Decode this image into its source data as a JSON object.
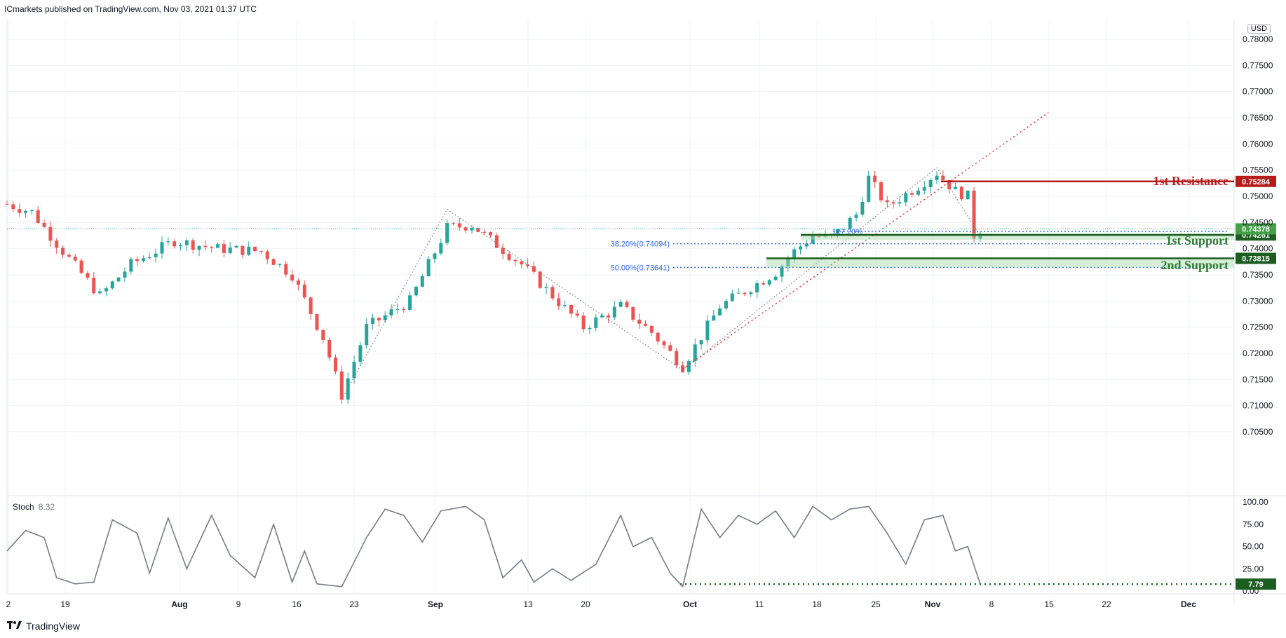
{
  "header": {
    "attribution": "ICmarkets published on TradingView.com, Nov 03, 2021 01:37 UTC"
  },
  "currency": "USD",
  "footer": {
    "brand": "TradingView",
    "logo_icon": "tradingview-logo-icon"
  },
  "colors": {
    "bull": "#26a69a",
    "bear": "#ef5350",
    "resistance": "#b71c1c",
    "support": "#1b5e20",
    "support_text": "#2e7d32",
    "fib": "#2962ff",
    "stoch_line": "#787b86",
    "grid": "#f0f3fa"
  },
  "chart_data": [
    {
      "type": "candlestick",
      "x_tick_labels": [
        "2",
        "19",
        "Aug",
        "9",
        "16",
        "23",
        "Sep",
        "13",
        "20",
        "Oct",
        "11",
        "18",
        "25",
        "Nov",
        "8",
        "15",
        "22",
        "Dec"
      ],
      "y_ticks": [
        "0.78000",
        "0.77500",
        "0.77000",
        "0.76500",
        "0.76000",
        "0.75500",
        "0.75000",
        "0.74500",
        "0.74000",
        "0.73500",
        "0.73000",
        "0.72500",
        "0.72000",
        "0.71500",
        "0.71000",
        "0.70500"
      ],
      "ylim": [
        0.7005,
        0.7808
      ],
      "grid": true,
      "anchors": [
        {
          "day": 0,
          "price": 0.7485
        },
        {
          "day": 4,
          "price": 0.747
        },
        {
          "day": 9,
          "price": 0.7395
        },
        {
          "day": 15,
          "price": 0.731
        },
        {
          "day": 20,
          "price": 0.737
        },
        {
          "day": 27,
          "price": 0.7415
        },
        {
          "day": 34,
          "price": 0.74
        },
        {
          "day": 41,
          "price": 0.7395
        },
        {
          "day": 46,
          "price": 0.735
        },
        {
          "day": 51,
          "price": 0.723
        },
        {
          "day": 54,
          "price": 0.712
        },
        {
          "day": 58,
          "price": 0.725
        },
        {
          "day": 65,
          "price": 0.73
        },
        {
          "day": 71,
          "price": 0.744
        },
        {
          "day": 75,
          "price": 0.7445
        },
        {
          "day": 83,
          "price": 0.737
        },
        {
          "day": 93,
          "price": 0.725
        },
        {
          "day": 99,
          "price": 0.729
        },
        {
          "day": 104,
          "price": 0.724
        },
        {
          "day": 109,
          "price": 0.7175
        },
        {
          "day": 115,
          "price": 0.729
        },
        {
          "day": 124,
          "price": 0.7355
        },
        {
          "day": 127,
          "price": 0.7395
        },
        {
          "day": 130,
          "price": 0.7425
        },
        {
          "day": 133,
          "price": 0.742
        },
        {
          "day": 137,
          "price": 0.7465
        },
        {
          "day": 139,
          "price": 0.7535
        },
        {
          "day": 142,
          "price": 0.748
        },
        {
          "day": 147,
          "price": 0.752
        },
        {
          "day": 150,
          "price": 0.7545
        },
        {
          "day": 153,
          "price": 0.751
        },
        {
          "day": 155,
          "price": 0.75
        },
        {
          "day": 156,
          "price": 0.7425
        },
        {
          "day": 157,
          "price": 0.7437
        }
      ],
      "levels": [
        {
          "label": "1st Resistance",
          "value": 0.75284,
          "value_label": "0.75284",
          "kind": "resistance"
        },
        {
          "label": "1st Support",
          "value": 0.74261,
          "value_label": "0.74261",
          "kind": "support",
          "zone_low": 0.7417,
          "zone_high": 0.743
        },
        {
          "label": "2nd Support",
          "value": 0.73815,
          "value_label": "0.73815",
          "kind": "support",
          "zone_low": 0.7364,
          "zone_high": 0.7383
        }
      ],
      "last_price": {
        "value": 0.74378,
        "value_label": "0.74378"
      },
      "fibonacci": [
        {
          "label": "38.20%(0.74094)",
          "value": 0.74094
        },
        {
          "label": "50.00%(0.73641)",
          "value": 0.73641
        },
        {
          "label": "127.20%",
          "value": 0.7433
        }
      ],
      "trendline": {
        "from": {
          "day": 109,
          "price": 0.717
        },
        "to": {
          "day": 168,
          "price": 0.766
        }
      }
    },
    {
      "type": "line",
      "title": "Stoch",
      "current_value": "8.32",
      "last_label": "7.79",
      "last_value": 7.79,
      "y_ticks": [
        "100.00",
        "75.00",
        "50.00",
        "25.00",
        "0.00"
      ],
      "ylim": [
        0,
        100
      ],
      "anchors": [
        {
          "day": 0,
          "value": 45
        },
        {
          "day": 3,
          "value": 68
        },
        {
          "day": 6,
          "value": 60
        },
        {
          "day": 8,
          "value": 15
        },
        {
          "day": 11,
          "value": 8
        },
        {
          "day": 14,
          "value": 10
        },
        {
          "day": 17,
          "value": 80
        },
        {
          "day": 21,
          "value": 65
        },
        {
          "day": 23,
          "value": 20
        },
        {
          "day": 26,
          "value": 82
        },
        {
          "day": 29,
          "value": 25
        },
        {
          "day": 33,
          "value": 85
        },
        {
          "day": 36,
          "value": 40
        },
        {
          "day": 40,
          "value": 15
        },
        {
          "day": 43,
          "value": 75
        },
        {
          "day": 46,
          "value": 10
        },
        {
          "day": 48,
          "value": 45
        },
        {
          "day": 50,
          "value": 8
        },
        {
          "day": 54,
          "value": 5
        },
        {
          "day": 58,
          "value": 60
        },
        {
          "day": 61,
          "value": 92
        },
        {
          "day": 64,
          "value": 85
        },
        {
          "day": 67,
          "value": 55
        },
        {
          "day": 70,
          "value": 90
        },
        {
          "day": 74,
          "value": 95
        },
        {
          "day": 77,
          "value": 80
        },
        {
          "day": 80,
          "value": 15
        },
        {
          "day": 83,
          "value": 35
        },
        {
          "day": 85,
          "value": 10
        },
        {
          "day": 88,
          "value": 25
        },
        {
          "day": 91,
          "value": 12
        },
        {
          "day": 95,
          "value": 30
        },
        {
          "day": 99,
          "value": 85
        },
        {
          "day": 101,
          "value": 50
        },
        {
          "day": 104,
          "value": 60
        },
        {
          "day": 107,
          "value": 20
        },
        {
          "day": 109,
          "value": 5
        },
        {
          "day": 112,
          "value": 92
        },
        {
          "day": 115,
          "value": 60
        },
        {
          "day": 118,
          "value": 85
        },
        {
          "day": 121,
          "value": 75
        },
        {
          "day": 124,
          "value": 90
        },
        {
          "day": 127,
          "value": 60
        },
        {
          "day": 130,
          "value": 95
        },
        {
          "day": 133,
          "value": 80
        },
        {
          "day": 136,
          "value": 92
        },
        {
          "day": 139,
          "value": 95
        },
        {
          "day": 142,
          "value": 65
        },
        {
          "day": 145,
          "value": 30
        },
        {
          "day": 148,
          "value": 80
        },
        {
          "day": 151,
          "value": 85
        },
        {
          "day": 153,
          "value": 45
        },
        {
          "day": 155,
          "value": 50
        },
        {
          "day": 157,
          "value": 8
        }
      ]
    }
  ]
}
